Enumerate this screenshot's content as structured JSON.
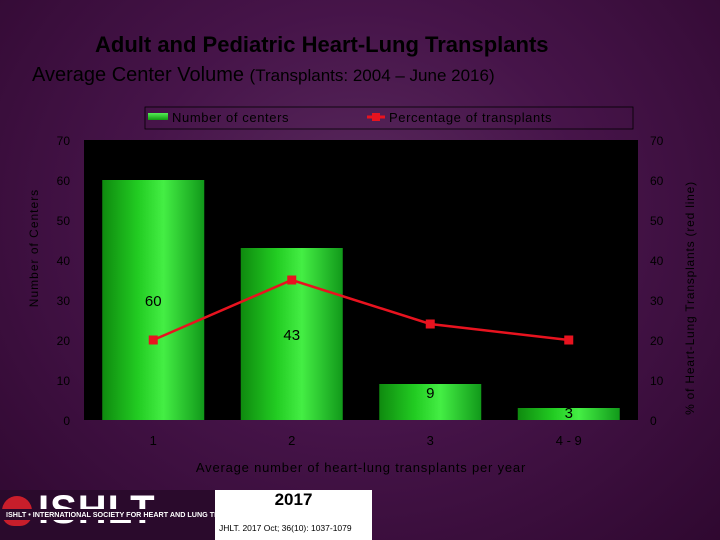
{
  "title": "Adult and Pediatric Heart-Lung Transplants",
  "subtitle": "Average Center Volume",
  "subtitle_note": "(Transplants: 2004 – June 2016)",
  "chart_data": {
    "type": "bar",
    "categories": [
      "1",
      "2",
      "3",
      "4 - 9"
    ],
    "series": [
      {
        "name": "Number of centers",
        "kind": "bar",
        "axis": "left",
        "color": "#22cc22",
        "values": [
          60,
          43,
          9,
          3
        ],
        "labels": [
          "60",
          "43",
          "9",
          "3"
        ]
      },
      {
        "name": "Percentage of transplants",
        "kind": "line",
        "axis": "right",
        "color": "#e8131f",
        "values": [
          20,
          35,
          24,
          20
        ]
      }
    ],
    "ylim": [
      0,
      70
    ],
    "y2lim": [
      0,
      70
    ],
    "yticks": [
      "0",
      "10",
      "20",
      "30",
      "40",
      "50",
      "60",
      "70"
    ],
    "y2ticks": [
      "0",
      "10",
      "20",
      "30",
      "40",
      "50",
      "60",
      "70"
    ],
    "xlabel": "Average number of heart-lung transplants per year",
    "ylabel": "Number of Centers",
    "y2label": "% of Heart-Lung Transplants (red line)",
    "legend_position": "top"
  },
  "footer": {
    "logo_text": "ISHLT",
    "society_text": "ISHLT • INTERNATIONAL SOCIETY FOR HEART AND LUNG TRANSPLANTATION",
    "year": "2017",
    "citation": "JHLT. 2017 Oct; 36(10): 1037-1079"
  },
  "colors": {
    "plot_bg": "#000000",
    "axis_text": "#000000",
    "bar": "#22cc22",
    "line": "#e8131f"
  }
}
